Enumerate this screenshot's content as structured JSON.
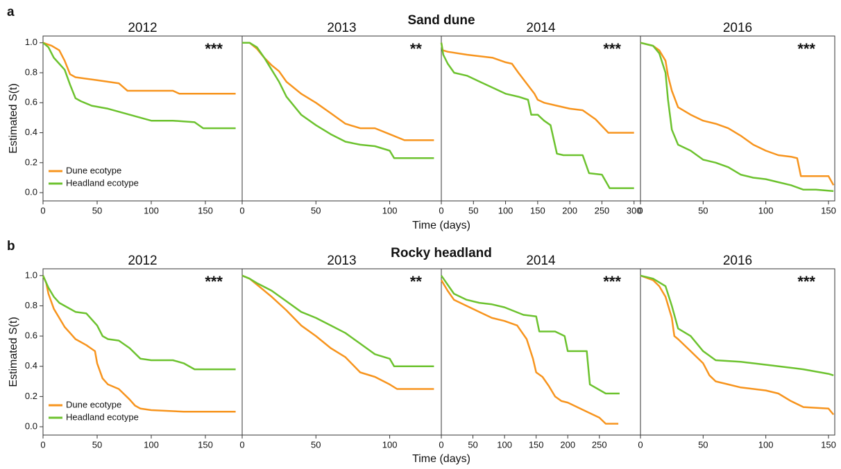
{
  "rows": [
    {
      "label": "a",
      "title": "Sand dune",
      "xlabel": "Time (days)"
    },
    {
      "label": "b",
      "title": "Rocky headland",
      "xlabel": "Time (days)"
    }
  ],
  "chart_data": [
    {
      "type": "line",
      "title": "2012",
      "annotation": "***",
      "ylabel": "Estimated S(t)",
      "legend": "lower left",
      "xlim": [
        0,
        184
      ],
      "ylim": [
        -0.055,
        1.045
      ],
      "xticks": [
        0,
        50,
        100,
        150
      ],
      "yticks": [
        {
          "value": 0,
          "label": "0.0"
        },
        {
          "value": 0.2,
          "label": "0.2"
        },
        {
          "value": 0.4,
          "label": "0.4"
        },
        {
          "value": 0.6,
          "label": "0.6"
        },
        {
          "value": 0.8,
          "label": "0.8"
        },
        {
          "value": 1,
          "label": "1.0"
        }
      ],
      "series": [
        {
          "name": "Dune ecotype",
          "color": "#f7941d",
          "x": [
            0,
            8,
            15,
            20,
            25,
            30,
            50,
            70,
            78,
            100,
            120,
            126,
            178
          ],
          "values": [
            1,
            0.98,
            0.95,
            0.88,
            0.79,
            0.77,
            0.75,
            0.73,
            0.68,
            0.68,
            0.68,
            0.66,
            0.66
          ]
        },
        {
          "name": "Headland ecotype",
          "color": "#6cc22e",
          "x": [
            0,
            5,
            10,
            15,
            20,
            25,
            30,
            35,
            45,
            60,
            80,
            100,
            120,
            140,
            148,
            178
          ],
          "values": [
            1,
            0.97,
            0.9,
            0.86,
            0.82,
            0.72,
            0.63,
            0.61,
            0.58,
            0.56,
            0.52,
            0.48,
            0.48,
            0.47,
            0.43,
            0.43
          ]
        }
      ]
    },
    {
      "type": "line",
      "title": "2013",
      "annotation": "**",
      "xlim": [
        0,
        135
      ],
      "ylim": [
        -0.055,
        1.045
      ],
      "xticks": [
        0,
        50,
        100
      ],
      "series": [
        {
          "color": "#f7941d",
          "x": [
            0,
            5,
            10,
            15,
            20,
            25,
            30,
            40,
            50,
            60,
            70,
            80,
            90,
            100,
            110,
            130
          ],
          "values": [
            1,
            1,
            0.96,
            0.9,
            0.85,
            0.81,
            0.74,
            0.66,
            0.6,
            0.53,
            0.46,
            0.43,
            0.43,
            0.39,
            0.35,
            0.35
          ]
        },
        {
          "color": "#6cc22e",
          "x": [
            0,
            5,
            10,
            15,
            20,
            25,
            30,
            40,
            50,
            60,
            70,
            80,
            90,
            100,
            103,
            130
          ],
          "values": [
            1,
            1,
            0.97,
            0.9,
            0.82,
            0.74,
            0.64,
            0.52,
            0.45,
            0.39,
            0.34,
            0.32,
            0.31,
            0.28,
            0.23,
            0.23
          ]
        }
      ]
    },
    {
      "type": "line",
      "title": "2014",
      "annotation": "***",
      "xlim": [
        0,
        310
      ],
      "ylim": [
        -0.055,
        1.045
      ],
      "xticks": [
        0,
        50,
        100,
        150,
        200,
        250,
        300
      ],
      "series": [
        {
          "color": "#f7941d",
          "x": [
            0,
            2,
            10,
            40,
            80,
            100,
            110,
            120,
            145,
            150,
            160,
            180,
            200,
            220,
            240,
            260,
            300
          ],
          "values": [
            1,
            0.95,
            0.94,
            0.92,
            0.9,
            0.87,
            0.86,
            0.8,
            0.66,
            0.62,
            0.6,
            0.58,
            0.56,
            0.55,
            0.49,
            0.4,
            0.4
          ]
        },
        {
          "color": "#6cc22e",
          "x": [
            0,
            3,
            10,
            20,
            40,
            60,
            80,
            100,
            120,
            135,
            140,
            150,
            160,
            170,
            180,
            190,
            220,
            230,
            250,
            262,
            300
          ],
          "values": [
            1,
            0.92,
            0.86,
            0.8,
            0.78,
            0.74,
            0.7,
            0.66,
            0.64,
            0.62,
            0.52,
            0.52,
            0.48,
            0.45,
            0.26,
            0.25,
            0.25,
            0.13,
            0.12,
            0.03,
            0.03
          ]
        }
      ]
    },
    {
      "type": "line",
      "title": "2016",
      "annotation": "***",
      "xlim": [
        0,
        155
      ],
      "ylim": [
        -0.055,
        1.045
      ],
      "xticks": [
        0,
        50,
        100,
        150
      ],
      "series": [
        {
          "color": "#f7941d",
          "x": [
            0,
            10,
            15,
            20,
            22,
            25,
            30,
            40,
            50,
            60,
            70,
            80,
            90,
            100,
            110,
            120,
            125,
            128,
            150,
            154
          ],
          "values": [
            1,
            0.98,
            0.95,
            0.88,
            0.78,
            0.68,
            0.57,
            0.52,
            0.48,
            0.46,
            0.43,
            0.38,
            0.32,
            0.28,
            0.25,
            0.24,
            0.23,
            0.11,
            0.11,
            0.05
          ]
        },
        {
          "color": "#6cc22e",
          "x": [
            0,
            10,
            15,
            20,
            22,
            25,
            30,
            40,
            50,
            60,
            70,
            80,
            90,
            100,
            110,
            120,
            130,
            140,
            154
          ],
          "values": [
            1,
            0.98,
            0.93,
            0.8,
            0.62,
            0.42,
            0.32,
            0.28,
            0.22,
            0.2,
            0.17,
            0.12,
            0.1,
            0.09,
            0.07,
            0.05,
            0.02,
            0.02,
            0.01
          ]
        }
      ]
    },
    {
      "type": "line",
      "title": "2012",
      "annotation": "***",
      "ylabel": "Estimated S(t)",
      "legend": "lower left",
      "xlim": [
        0,
        184
      ],
      "ylim": [
        -0.055,
        1.045
      ],
      "xticks": [
        0,
        50,
        100,
        150
      ],
      "yticks": [
        {
          "value": 0,
          "label": "0.0"
        },
        {
          "value": 0.2,
          "label": "0.2"
        },
        {
          "value": 0.4,
          "label": "0.4"
        },
        {
          "value": 0.6,
          "label": "0.6"
        },
        {
          "value": 0.8,
          "label": "0.8"
        },
        {
          "value": 1,
          "label": "1.0"
        }
      ],
      "series": [
        {
          "name": "Dune ecotype",
          "color": "#f7941d",
          "x": [
            0,
            3,
            5,
            10,
            15,
            20,
            25,
            30,
            40,
            48,
            50,
            55,
            60,
            70,
            80,
            85,
            90,
            100,
            130,
            178
          ],
          "values": [
            1,
            0.95,
            0.88,
            0.78,
            0.72,
            0.66,
            0.62,
            0.58,
            0.54,
            0.5,
            0.42,
            0.32,
            0.28,
            0.25,
            0.18,
            0.14,
            0.12,
            0.11,
            0.1,
            0.1
          ]
        },
        {
          "name": "Headland ecotype",
          "color": "#6cc22e",
          "x": [
            0,
            5,
            10,
            15,
            20,
            30,
            40,
            50,
            55,
            60,
            70,
            80,
            90,
            100,
            120,
            130,
            140,
            178
          ],
          "values": [
            1,
            0.92,
            0.86,
            0.82,
            0.8,
            0.76,
            0.75,
            0.67,
            0.6,
            0.58,
            0.57,
            0.52,
            0.45,
            0.44,
            0.44,
            0.42,
            0.38,
            0.38
          ]
        }
      ]
    },
    {
      "type": "line",
      "title": "2013",
      "annotation": "**",
      "xlim": [
        0,
        135
      ],
      "ylim": [
        -0.055,
        1.045
      ],
      "xticks": [
        0,
        50,
        100
      ],
      "series": [
        {
          "color": "#f7941d",
          "x": [
            0,
            5,
            10,
            20,
            30,
            40,
            50,
            60,
            70,
            80,
            90,
            100,
            105,
            130
          ],
          "values": [
            1,
            0.98,
            0.94,
            0.86,
            0.77,
            0.67,
            0.6,
            0.52,
            0.46,
            0.36,
            0.33,
            0.28,
            0.25,
            0.25
          ]
        },
        {
          "color": "#6cc22e",
          "x": [
            0,
            5,
            10,
            20,
            30,
            40,
            50,
            60,
            70,
            80,
            90,
            100,
            103,
            130
          ],
          "values": [
            1,
            0.98,
            0.95,
            0.9,
            0.83,
            0.76,
            0.72,
            0.67,
            0.62,
            0.55,
            0.48,
            0.45,
            0.4,
            0.4
          ]
        }
      ]
    },
    {
      "type": "line",
      "title": "2014",
      "annotation": "***",
      "xlim": [
        0,
        315
      ],
      "ylim": [
        -0.055,
        1.045
      ],
      "xticks": [
        0,
        50,
        100,
        150,
        200,
        250
      ],
      "series": [
        {
          "color": "#f7941d",
          "x": [
            0,
            10,
            20,
            40,
            60,
            80,
            100,
            120,
            135,
            145,
            150,
            160,
            170,
            180,
            190,
            200,
            230,
            250,
            260,
            280
          ],
          "values": [
            0.97,
            0.9,
            0.84,
            0.8,
            0.76,
            0.72,
            0.7,
            0.67,
            0.58,
            0.45,
            0.36,
            0.33,
            0.27,
            0.2,
            0.17,
            0.16,
            0.1,
            0.06,
            0.02,
            0.02
          ]
        },
        {
          "color": "#6cc22e",
          "x": [
            0,
            10,
            20,
            40,
            60,
            80,
            100,
            130,
            150,
            155,
            180,
            195,
            200,
            230,
            235,
            260,
            282
          ],
          "values": [
            1,
            0.94,
            0.88,
            0.84,
            0.82,
            0.81,
            0.79,
            0.74,
            0.73,
            0.63,
            0.63,
            0.6,
            0.5,
            0.5,
            0.28,
            0.22,
            0.22
          ]
        }
      ]
    },
    {
      "type": "line",
      "title": "2016",
      "annotation": "***",
      "xlim": [
        0,
        155
      ],
      "ylim": [
        -0.055,
        1.045
      ],
      "xticks": [
        0,
        50,
        100,
        150
      ],
      "series": [
        {
          "color": "#f7941d",
          "x": [
            0,
            10,
            15,
            20,
            25,
            27,
            30,
            40,
            50,
            55,
            60,
            70,
            80,
            100,
            110,
            120,
            130,
            150,
            154
          ],
          "values": [
            1,
            0.97,
            0.93,
            0.86,
            0.72,
            0.6,
            0.58,
            0.5,
            0.42,
            0.34,
            0.3,
            0.28,
            0.26,
            0.24,
            0.22,
            0.17,
            0.13,
            0.12,
            0.08
          ]
        },
        {
          "color": "#6cc22e",
          "x": [
            0,
            10,
            20,
            25,
            30,
            40,
            50,
            60,
            80,
            100,
            120,
            130,
            150,
            154
          ],
          "values": [
            1,
            0.98,
            0.93,
            0.8,
            0.65,
            0.6,
            0.5,
            0.44,
            0.43,
            0.41,
            0.39,
            0.38,
            0.35,
            0.34
          ]
        }
      ]
    }
  ]
}
